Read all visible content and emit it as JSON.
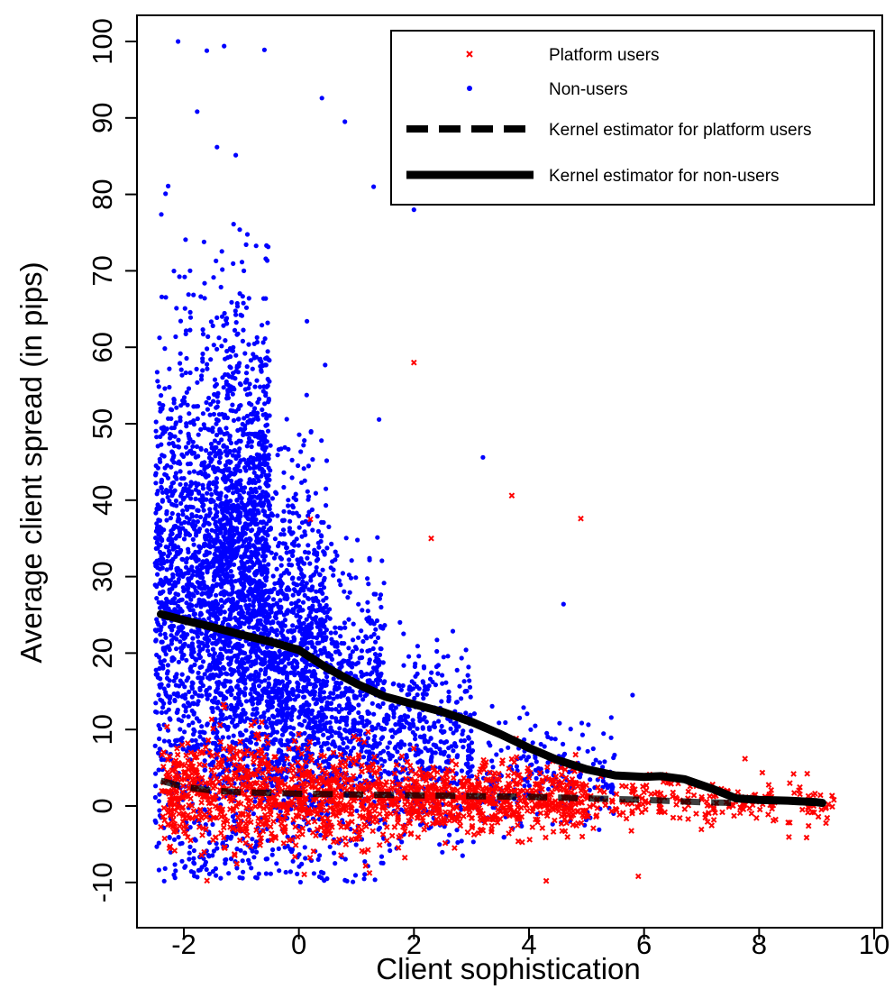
{
  "chart_data": {
    "type": "scatter",
    "title": "",
    "xlabel": "Client sophistication",
    "ylabel": "Average client spread (in pips)",
    "xlim": [
      -2.9,
      10.5
    ],
    "ylim": [
      -12,
      102
    ],
    "xticks": [
      -2,
      0,
      2,
      4,
      6,
      8,
      10
    ],
    "yticks": [
      -10,
      0,
      10,
      20,
      30,
      40,
      50,
      60,
      70,
      80,
      90,
      100
    ],
    "grid": false,
    "legend_position": "top-right",
    "colors": {
      "platform_users": "#ff0000",
      "non_users": "#0000ff",
      "kernel_platform": "#000000",
      "kernel_non_users": "#000000"
    },
    "legend": [
      {
        "label": "Platform users",
        "marker": "x",
        "color": "#ff0000"
      },
      {
        "label": "Non-users",
        "marker": "dot",
        "color": "#0000ff"
      },
      {
        "label": "Kernel estimator for platform users",
        "marker": "dashed-line",
        "color": "#000000"
      },
      {
        "label": "Kernel estimator for non-users",
        "marker": "solid-line",
        "color": "#000000"
      }
    ],
    "series": [
      {
        "name": "Non-users",
        "kind": "scatter-cloud",
        "approx_point_count": 5200,
        "density_profile": [
          {
            "x_from": -2.5,
            "x_to": -1.5,
            "share": 0.22,
            "y_center": 28,
            "y_spread": 22
          },
          {
            "x_from": -1.5,
            "x_to": -0.5,
            "share": 0.36,
            "y_center": 30,
            "y_spread": 22
          },
          {
            "x_from": -0.5,
            "x_to": 0.5,
            "share": 0.2,
            "y_center": 18,
            "y_spread": 16
          },
          {
            "x_from": 0.5,
            "x_to": 1.5,
            "share": 0.1,
            "y_center": 12,
            "y_spread": 12
          },
          {
            "x_from": 1.5,
            "x_to": 3.0,
            "share": 0.08,
            "y_center": 8,
            "y_spread": 8
          },
          {
            "x_from": 3.0,
            "x_to": 5.5,
            "share": 0.04,
            "y_center": 4,
            "y_spread": 5
          }
        ],
        "notable_points": [
          {
            "x": -2.1,
            "y": 100
          },
          {
            "x": -1.6,
            "y": 98.8
          },
          {
            "x": -1.3,
            "y": 99.4
          },
          {
            "x": -0.6,
            "y": 98.9
          },
          {
            "x": 0.4,
            "y": 92.6
          },
          {
            "x": 0.8,
            "y": 89.5
          },
          {
            "x": 1.3,
            "y": 81
          },
          {
            "x": 2.0,
            "y": 78
          },
          {
            "x": 3.2,
            "y": 45.6
          },
          {
            "x": 4.6,
            "y": 26.4
          },
          {
            "x": 5.8,
            "y": 14.5
          }
        ]
      },
      {
        "name": "Platform users",
        "kind": "scatter-cloud",
        "approx_point_count": 1800,
        "density_profile": [
          {
            "x_from": -2.4,
            "x_to": -0.5,
            "share": 0.25,
            "y_center": 1.5,
            "y_spread": 5
          },
          {
            "x_from": -0.5,
            "x_to": 2.0,
            "share": 0.3,
            "y_center": 1.2,
            "y_spread": 4
          },
          {
            "x_from": 2.0,
            "x_to": 5.0,
            "share": 0.33,
            "y_center": 0.8,
            "y_spread": 3
          },
          {
            "x_from": 5.0,
            "x_to": 9.3,
            "share": 0.12,
            "y_center": 0.5,
            "y_spread": 2
          }
        ],
        "notable_points": [
          {
            "x": 2.0,
            "y": 58
          },
          {
            "x": 3.7,
            "y": 40.6
          },
          {
            "x": 4.9,
            "y": 37.6
          },
          {
            "x": 0.2,
            "y": 37.5
          },
          {
            "x": 2.3,
            "y": 35
          },
          {
            "x": 4.3,
            "y": -9.8
          },
          {
            "x": 5.9,
            "y": -9.2
          },
          {
            "x": 8.6,
            "y": 4.2
          },
          {
            "x": 9.3,
            "y": 0.8
          }
        ]
      },
      {
        "name": "Kernel estimator for non-users",
        "kind": "line",
        "points": [
          {
            "x": -2.4,
            "y": 25.1
          },
          {
            "x": -2.0,
            "y": 24.3
          },
          {
            "x": -1.5,
            "y": 23.4
          },
          {
            "x": -1.0,
            "y": 22.4
          },
          {
            "x": -0.5,
            "y": 21.5
          },
          {
            "x": 0.0,
            "y": 20.4
          },
          {
            "x": 0.5,
            "y": 18.0
          },
          {
            "x": 1.0,
            "y": 16.0
          },
          {
            "x": 1.5,
            "y": 14.3
          },
          {
            "x": 2.0,
            "y": 13.3
          },
          {
            "x": 2.5,
            "y": 12.3
          },
          {
            "x": 3.0,
            "y": 11.0
          },
          {
            "x": 3.5,
            "y": 9.4
          },
          {
            "x": 4.0,
            "y": 7.6
          },
          {
            "x": 4.5,
            "y": 6.0
          },
          {
            "x": 5.0,
            "y": 4.8
          },
          {
            "x": 5.5,
            "y": 4.0
          },
          {
            "x": 6.0,
            "y": 3.8
          },
          {
            "x": 6.3,
            "y": 3.9
          },
          {
            "x": 6.7,
            "y": 3.5
          },
          {
            "x": 7.2,
            "y": 2.2
          },
          {
            "x": 7.6,
            "y": 1.0
          },
          {
            "x": 8.0,
            "y": 0.8
          },
          {
            "x": 8.5,
            "y": 0.7
          },
          {
            "x": 9.0,
            "y": 0.5
          },
          {
            "x": 9.1,
            "y": 0.4
          }
        ]
      },
      {
        "name": "Kernel estimator for platform users",
        "kind": "line",
        "points": [
          {
            "x": -2.4,
            "y": 3.3
          },
          {
            "x": -2.0,
            "y": 2.5
          },
          {
            "x": -1.5,
            "y": 2.0
          },
          {
            "x": -1.0,
            "y": 1.8
          },
          {
            "x": 0.0,
            "y": 1.6
          },
          {
            "x": 1.0,
            "y": 1.5
          },
          {
            "x": 2.0,
            "y": 1.4
          },
          {
            "x": 3.0,
            "y": 1.3
          },
          {
            "x": 4.0,
            "y": 1.2
          },
          {
            "x": 5.0,
            "y": 1.0
          },
          {
            "x": 6.0,
            "y": 0.8
          },
          {
            "x": 7.0,
            "y": 0.5
          },
          {
            "x": 7.6,
            "y": 0.4
          }
        ]
      }
    ]
  }
}
